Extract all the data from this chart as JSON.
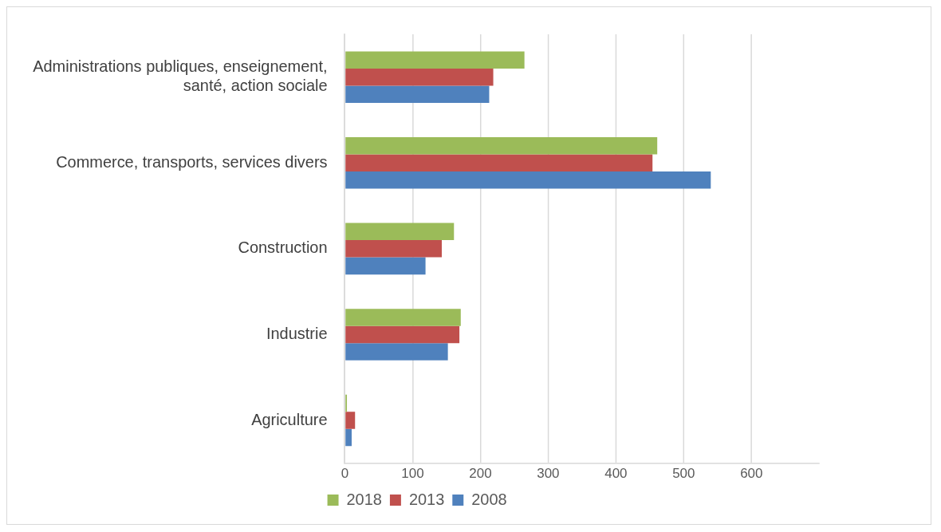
{
  "chart_data": {
    "type": "bar",
    "orientation": "horizontal",
    "categories": [
      "Administrations publiques, enseignement, santé, action sociale",
      "Commerce, transports, services divers",
      "Construction",
      "Industrie",
      "Agriculture"
    ],
    "series": [
      {
        "name": "2018",
        "color": "#9bbb59",
        "values": [
          265,
          461,
          161,
          171,
          3
        ]
      },
      {
        "name": "2013",
        "color": "#c0504d",
        "values": [
          219,
          454,
          143,
          169,
          15
        ]
      },
      {
        "name": "2008",
        "color": "#4f81bd",
        "values": [
          213,
          540,
          119,
          152,
          10
        ]
      }
    ],
    "xlim": [
      0,
      700
    ],
    "xticks": [
      0,
      100,
      200,
      300,
      400,
      500,
      600
    ],
    "grid": "x",
    "legend": "bottom"
  }
}
